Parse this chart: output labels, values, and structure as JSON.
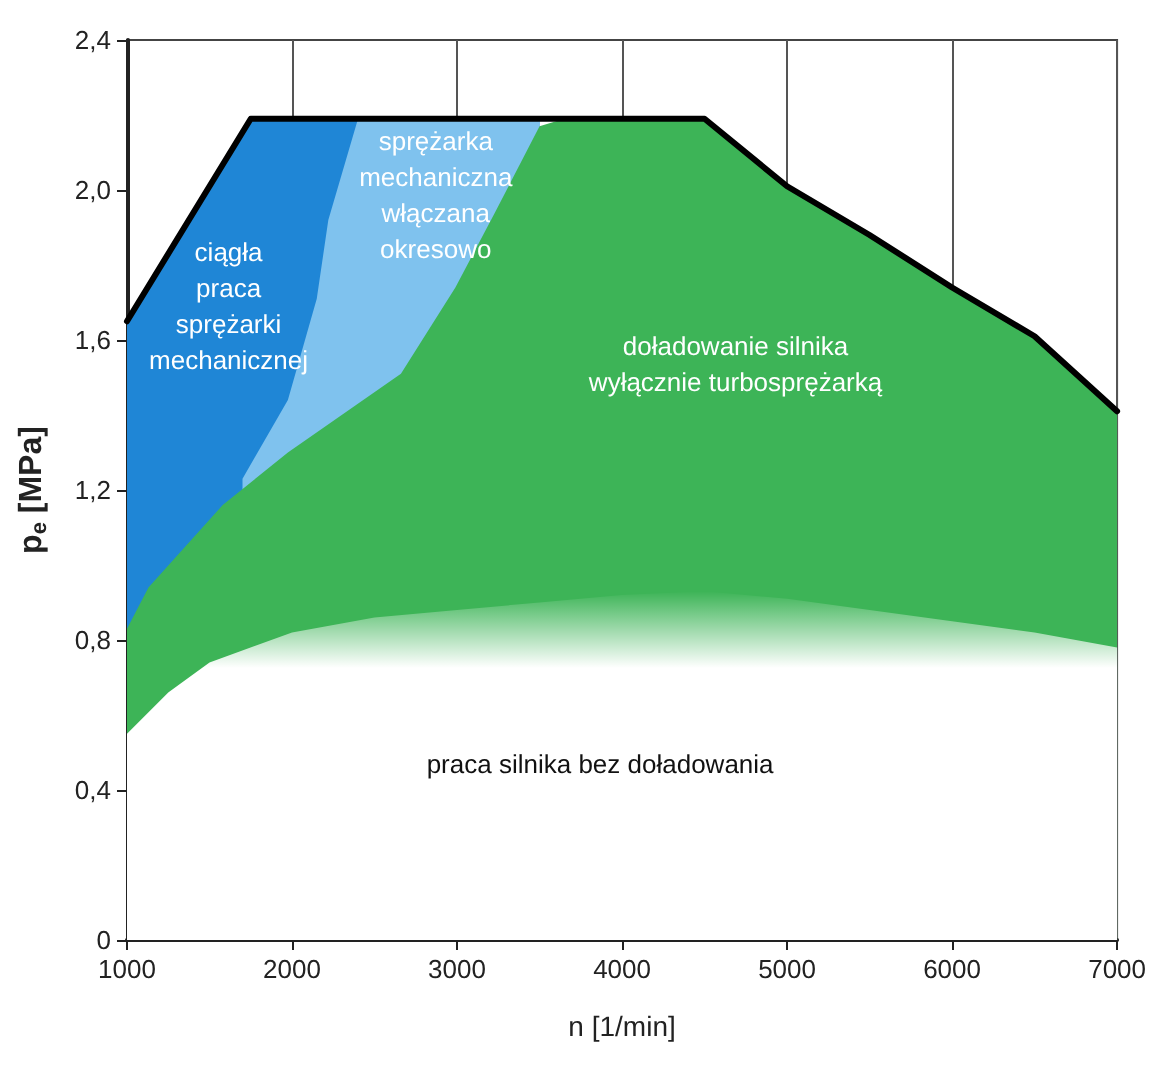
{
  "chart_data": {
    "type": "area",
    "xlabel": "n [1/min]",
    "ylabel": "p$_{e}$ [MPa]",
    "xlim": [
      1000,
      7000
    ],
    "xticks": [
      1000,
      2000,
      3000,
      4000,
      5000,
      6000,
      7000
    ],
    "ylim": [
      0,
      2.4
    ],
    "yticks": [
      {
        "value": 0,
        "label": "0"
      },
      {
        "value": 0.4,
        "label": "0,4"
      },
      {
        "value": 0.8,
        "label": "0,8"
      },
      {
        "value": 1.2,
        "label": "1,2"
      },
      {
        "value": 1.6,
        "label": "1,6"
      },
      {
        "value": 2.0,
        "label": "2,0"
      },
      {
        "value": 2.4,
        "label": "2,4"
      }
    ],
    "grid": "x",
    "series": [
      {
        "color": "#1f86d6",
        "x": [
          1000,
          1750,
          3500
        ],
        "values": [
          1.65,
          2.19,
          2.19
        ]
      },
      {
        "color": "#7fc2ee",
        "x": [
          1700,
          1975,
          2150,
          2220,
          2400,
          3500
        ],
        "values": [
          1.23,
          1.44,
          1.71,
          1.92,
          2.19,
          2.19
        ]
      },
      {
        "color": "#3db457",
        "x": [
          1000,
          1130,
          1580,
          1975,
          2660,
          2990,
          3230,
          3500,
          3650,
          4500,
          5000,
          5500,
          6000,
          6500,
          7000
        ],
        "values": [
          0.83,
          0.94,
          1.16,
          1.3,
          1.51,
          1.74,
          1.94,
          2.17,
          2.19,
          2.19,
          2.01,
          1.88,
          1.74,
          1.61,
          1.41
        ]
      },
      {
        "color": "#ffffff",
        "x": [
          1000,
          1250,
          1500,
          2000,
          2500,
          3000,
          3500,
          4000,
          4500,
          5000,
          5500,
          6000,
          6500,
          7000
        ],
        "values": [
          0.55,
          0.66,
          0.74,
          0.82,
          0.86,
          0.88,
          0.9,
          0.92,
          0.93,
          0.91,
          0.88,
          0.85,
          0.82,
          0.78
        ]
      },
      {
        "type": "line",
        "color": "#000000",
        "x": [
          1000,
          1750,
          4500,
          5000,
          5500,
          6000,
          6500,
          7000
        ],
        "values": [
          1.65,
          2.19,
          2.19,
          2.01,
          1.88,
          1.74,
          1.61,
          1.41
        ]
      }
    ],
    "annotations": [
      "ciągła\npraca\nsprężarki\nmechanicznej",
      "sprężarka\nmechaniczna\nwłączana\nokresowo",
      "doładowanie silnika\nwyłącznie turbosprężarką",
      "praca silnika bez doładowania"
    ]
  }
}
